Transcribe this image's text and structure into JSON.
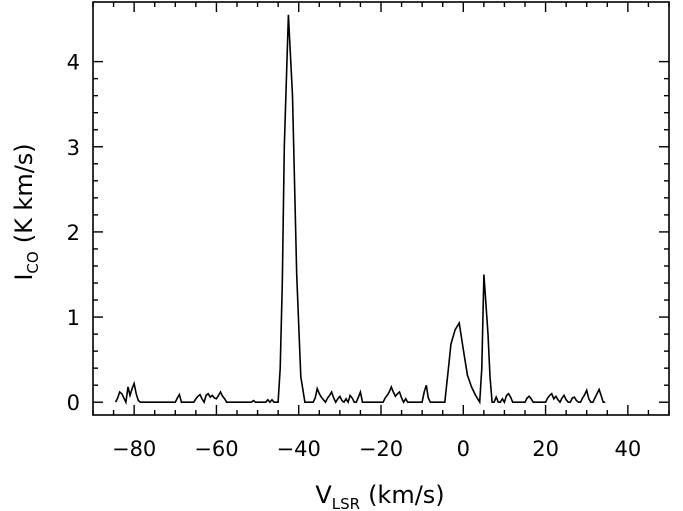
{
  "chart_data": {
    "type": "line",
    "title": "",
    "xlabel": {
      "main": "V",
      "sub": "LSR",
      "unit": "(km/s)"
    },
    "ylabel": {
      "main": "I",
      "sub": "CO",
      "unit": "(K km/s)"
    },
    "xlim": [
      -90,
      50
    ],
    "ylim": [
      -0.15,
      4.7
    ],
    "x_ticks": [
      -80,
      -60,
      -40,
      -20,
      0,
      20,
      40
    ],
    "x_tick_labels": [
      "−80",
      "−60",
      "−40",
      "−20",
      "0",
      "20",
      "40"
    ],
    "y_ticks": [
      0,
      1,
      2,
      3,
      4
    ],
    "y_tick_labels": [
      "0",
      "1",
      "2",
      "3",
      "4"
    ],
    "grid": false,
    "color": "#000000",
    "series": [
      {
        "x": [
          -84.5,
          -84.0,
          -83.5,
          -83.0,
          -82.5,
          -82.0,
          -81.5,
          -81.0,
          -80.5,
          -80.0,
          -79.5,
          -79.0,
          -78.5,
          -78.0,
          -77.5,
          -77.0,
          -70.0,
          -69.5,
          -69.0,
          -68.5,
          -68.0,
          -65.5,
          -65.0,
          -64.5,
          -64.0,
          -63.5,
          -63.0,
          -62.5,
          -62.0,
          -61.5,
          -61.0,
          -60.5,
          -60.0,
          -59.5,
          -59.0,
          -58.5,
          -58.0,
          -57.5,
          -57.0,
          -51.5,
          -51.0,
          -50.5,
          -50.0,
          -48.0,
          -47.5,
          -47.0,
          -46.5,
          -46.0,
          -45.0,
          -44.5,
          -44.0,
          -43.5,
          -42.5,
          -41.5,
          -40.5,
          -39.5,
          -38.5,
          -37.5,
          -36.5,
          -36.0,
          -35.5,
          -35.0,
          -34.5,
          -34.0,
          -33.5,
          -33.0,
          -32.5,
          -32.0,
          -31.5,
          -31.0,
          -30.5,
          -30.0,
          -29.5,
          -29.0,
          -28.5,
          -28.0,
          -27.5,
          -27.0,
          -26.5,
          -26.0,
          -25.5,
          -25.0,
          -24.5,
          -19.5,
          -19.0,
          -18.5,
          -18.0,
          -17.5,
          -17.0,
          -16.5,
          -16.0,
          -15.5,
          -15.0,
          -14.5,
          -14.0,
          -13.5,
          -10.0,
          -9.5,
          -9.0,
          -8.5,
          -8.0,
          -7.5,
          -7.0,
          -4.5,
          -3.5,
          -3.0,
          -2.0,
          -1.0,
          0.0,
          1.0,
          2.0,
          3.0,
          4.0,
          4.5,
          5.0,
          6.0,
          6.5,
          7.0,
          7.5,
          8.0,
          8.5,
          9.0,
          9.5,
          10.0,
          10.5,
          11.0,
          11.5,
          12.0,
          15.0,
          15.5,
          16.0,
          16.5,
          17.0,
          17.5,
          20.0,
          20.5,
          21.0,
          21.5,
          22.0,
          22.5,
          23.0,
          23.5,
          24.0,
          24.5,
          25.0,
          25.5,
          26.0,
          26.5,
          27.0,
          27.5,
          28.0,
          28.5,
          29.0,
          29.5,
          30.0,
          30.5,
          31.0,
          31.5,
          32.0,
          32.5,
          33.0,
          33.5,
          34.0,
          34.5
        ],
        "y": [
          0.0,
          0.05,
          0.12,
          0.1,
          0.05,
          0.0,
          0.18,
          0.08,
          0.16,
          0.22,
          0.1,
          0.02,
          0.0,
          0.0,
          0.0,
          0.0,
          0.0,
          0.05,
          0.09,
          0.0,
          0.0,
          0.0,
          0.04,
          0.07,
          0.09,
          0.04,
          0.0,
          0.08,
          0.1,
          0.06,
          0.08,
          0.05,
          0.04,
          0.08,
          0.12,
          0.07,
          0.04,
          0.0,
          0.0,
          0.0,
          0.02,
          0.0,
          0.0,
          0.0,
          0.03,
          0.0,
          0.03,
          0.0,
          0.0,
          0.4,
          1.4,
          3.0,
          4.55,
          3.6,
          1.5,
          0.3,
          0.0,
          0.0,
          0.0,
          0.05,
          0.16,
          0.1,
          0.06,
          0.03,
          0.0,
          0.05,
          0.08,
          0.12,
          0.05,
          0.0,
          0.04,
          0.07,
          0.02,
          0.0,
          0.04,
          0.0,
          0.08,
          0.05,
          0.0,
          0.0,
          0.06,
          0.12,
          0.0,
          0.0,
          0.05,
          0.08,
          0.12,
          0.18,
          0.12,
          0.07,
          0.1,
          0.12,
          0.05,
          0.0,
          0.04,
          0.0,
          0.0,
          0.12,
          0.2,
          0.05,
          0.0,
          0.0,
          0.0,
          0.0,
          0.45,
          0.68,
          0.85,
          0.93,
          0.62,
          0.32,
          0.18,
          0.08,
          0.0,
          0.4,
          1.5,
          0.8,
          0.3,
          0.0,
          0.0,
          0.06,
          0.0,
          0.0,
          0.04,
          0.0,
          0.08,
          0.1,
          0.06,
          0.0,
          0.0,
          0.05,
          0.07,
          0.04,
          0.0,
          0.0,
          0.0,
          0.05,
          0.08,
          0.1,
          0.04,
          0.07,
          0.03,
          0.0,
          0.05,
          0.08,
          0.03,
          0.0,
          0.0,
          0.05,
          0.06,
          0.02,
          0.0,
          0.0,
          0.05,
          0.09,
          0.14,
          0.04,
          0.0,
          0.0,
          0.05,
          0.1,
          0.15,
          0.08,
          0.0,
          0.0
        ]
      }
    ]
  }
}
